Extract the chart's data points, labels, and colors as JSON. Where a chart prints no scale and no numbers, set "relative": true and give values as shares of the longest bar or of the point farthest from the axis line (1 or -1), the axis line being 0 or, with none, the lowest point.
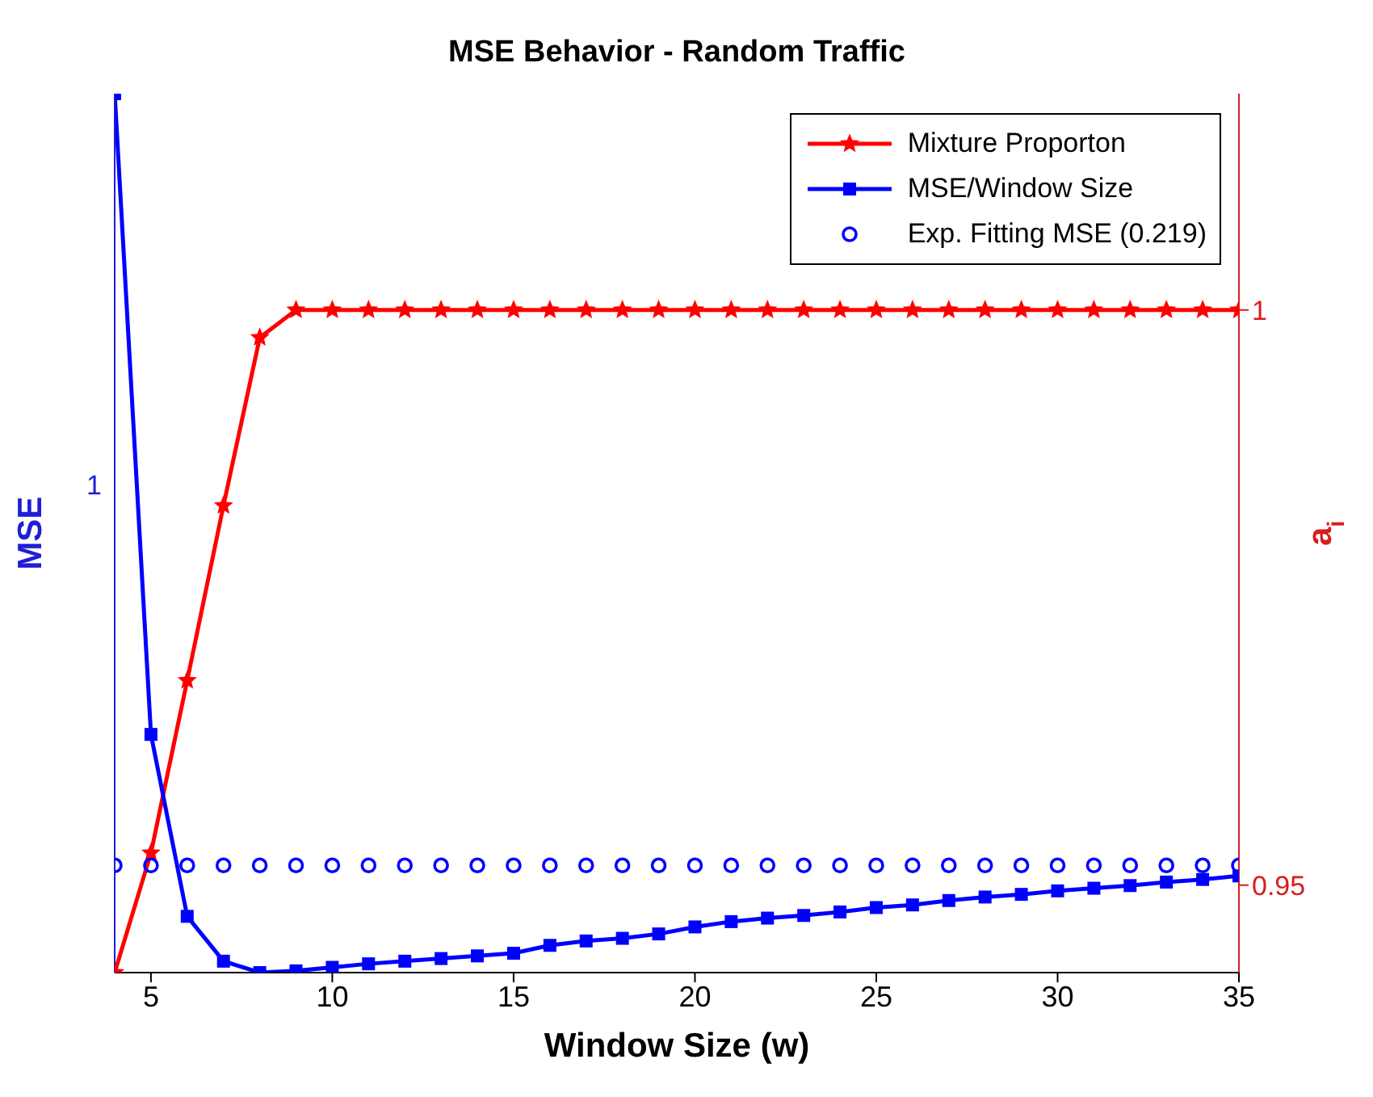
{
  "chart_data": {
    "type": "line",
    "title": "MSE Behavior - Random Traffic",
    "xlabel": "Window Size (w)",
    "ylabel": "MSE",
    "y2label": "a$_{i}$",
    "x": [
      4,
      5,
      6,
      7,
      8,
      9,
      10,
      11,
      12,
      13,
      14,
      15,
      16,
      17,
      18,
      19,
      20,
      21,
      22,
      23,
      24,
      25,
      26,
      27,
      28,
      29,
      30,
      31,
      32,
      33,
      34,
      35
    ],
    "xlim": [
      4,
      35
    ],
    "xticks": [
      5,
      10,
      15,
      20,
      25,
      30,
      35
    ],
    "relative": true,
    "annotations": [
      "1"
    ],
    "y2lim": [
      0.9424,
      1.0188
    ],
    "y2ticks": [
      0.95,
      1
    ],
    "legend": "top right",
    "series": [
      {
        "name": "Mixture Proporton",
        "color": "#ff0000",
        "axis": "y2",
        "marker": "star",
        "line_style": "solid",
        "values": [
          0.9424,
          0.9528,
          0.9678,
          0.983,
          0.9976,
          1,
          1,
          1,
          1,
          1,
          1,
          1,
          1,
          1,
          1,
          1,
          1,
          1,
          1,
          1,
          1,
          1,
          1,
          1,
          1,
          1,
          1,
          1,
          1,
          1,
          1,
          1
        ]
      },
      {
        "name": "MSE/Window Size",
        "color": "#0000ff",
        "marker": "square",
        "line_style": "solid",
        "values": [
          1,
          0.271,
          0.064,
          0.013,
          0,
          0.002,
          0.006,
          0.01,
          0.013,
          0.016,
          0.019,
          0.022,
          0.031,
          0.036,
          0.039,
          0.044,
          0.052,
          0.058,
          0.062,
          0.065,
          0.069,
          0.074,
          0.077,
          0.082,
          0.086,
          0.089,
          0.093,
          0.096,
          0.099,
          0.103,
          0.106,
          0.11
        ]
      },
      {
        "name": "Exp. Fitting MSE (0.219)",
        "color": "#0000ff",
        "type": "scatter",
        "marker": "circle",
        "values": [
          0.122,
          0.122,
          0.122,
          0.122,
          0.122,
          0.122,
          0.122,
          0.122,
          0.122,
          0.122,
          0.122,
          0.122,
          0.122,
          0.122,
          0.122,
          0.122,
          0.122,
          0.122,
          0.122,
          0.122,
          0.122,
          0.122,
          0.122,
          0.122,
          0.122,
          0.122,
          0.122,
          0.122,
          0.122,
          0.122,
          0.122,
          0.122
        ]
      }
    ]
  }
}
